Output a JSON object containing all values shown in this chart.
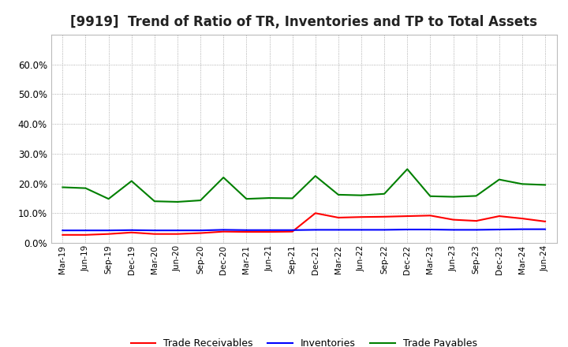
{
  "title": "[9919]  Trend of Ratio of TR, Inventories and TP to Total Assets",
  "x_labels": [
    "Mar-19",
    "Jun-19",
    "Sep-19",
    "Dec-19",
    "Mar-20",
    "Jun-20",
    "Sep-20",
    "Dec-20",
    "Mar-21",
    "Jun-21",
    "Sep-21",
    "Dec-21",
    "Mar-22",
    "Jun-22",
    "Sep-22",
    "Dec-22",
    "Mar-23",
    "Jun-23",
    "Sep-23",
    "Dec-23",
    "Mar-24",
    "Jun-24"
  ],
  "trade_receivables": [
    0.027,
    0.027,
    0.03,
    0.035,
    0.03,
    0.03,
    0.033,
    0.038,
    0.037,
    0.037,
    0.038,
    0.1,
    0.085,
    0.087,
    0.088,
    0.09,
    0.092,
    0.078,
    0.074,
    0.09,
    0.082,
    0.072
  ],
  "inventories": [
    0.042,
    0.042,
    0.042,
    0.043,
    0.042,
    0.042,
    0.042,
    0.044,
    0.043,
    0.043,
    0.043,
    0.044,
    0.044,
    0.044,
    0.044,
    0.045,
    0.045,
    0.044,
    0.044,
    0.045,
    0.046,
    0.046
  ],
  "trade_payables": [
    0.187,
    0.184,
    0.148,
    0.208,
    0.14,
    0.138,
    0.143,
    0.22,
    0.148,
    0.151,
    0.15,
    0.225,
    0.162,
    0.16,
    0.165,
    0.248,
    0.157,
    0.155,
    0.158,
    0.213,
    0.198,
    0.195
  ],
  "tr_color": "#ff0000",
  "inv_color": "#0000ff",
  "tp_color": "#008000",
  "ylim": [
    0.0,
    0.7
  ],
  "yticks": [
    0.0,
    0.1,
    0.2,
    0.3,
    0.4,
    0.5,
    0.6
  ],
  "background_color": "#ffffff",
  "grid_color": "#999999",
  "title_fontsize": 12,
  "legend_labels": [
    "Trade Receivables",
    "Inventories",
    "Trade Payables"
  ]
}
